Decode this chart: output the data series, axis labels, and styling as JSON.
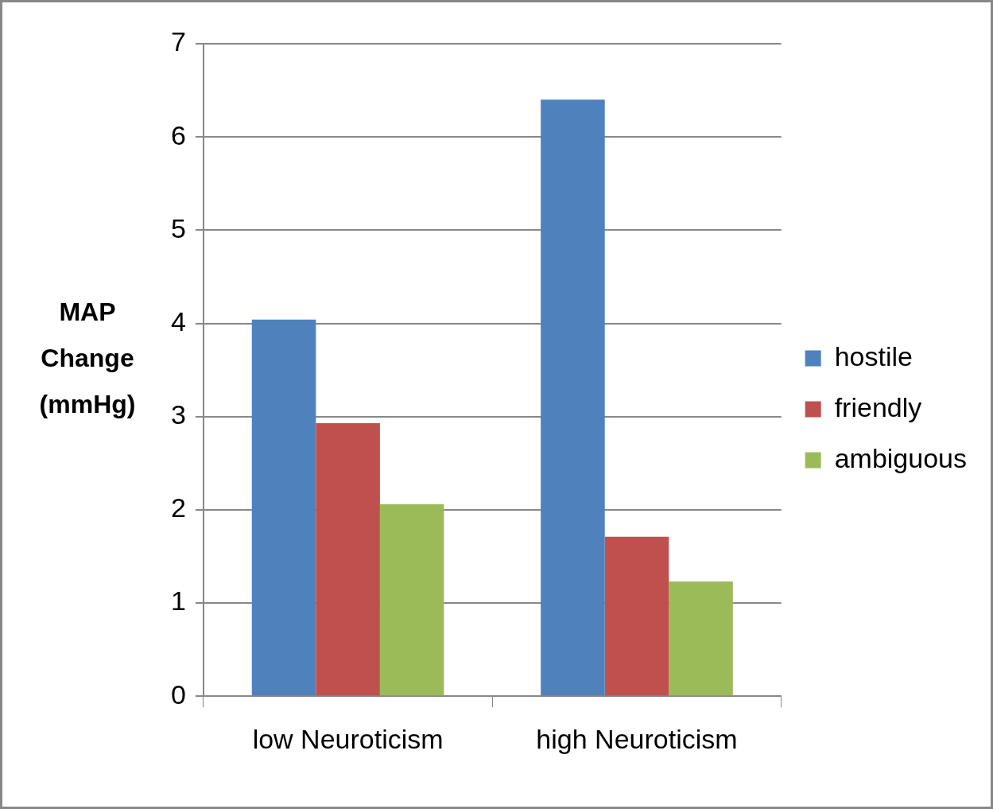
{
  "chart_data": {
    "type": "bar",
    "ylabel": "MAP Change (mmHg)",
    "categories": [
      "low Neuroticism",
      "high Neuroticism"
    ],
    "series": [
      {
        "name": "hostile",
        "color": "#4f81bd",
        "values": [
          4.04,
          6.4
        ]
      },
      {
        "name": "friendly",
        "color": "#c0504d",
        "values": [
          2.93,
          1.71
        ]
      },
      {
        "name": "ambiguous",
        "color": "#9bbb59",
        "values": [
          2.06,
          1.23
        ]
      }
    ],
    "ylim": [
      0,
      7
    ],
    "yticks": [
      0,
      1,
      2,
      3,
      4,
      5,
      6,
      7
    ],
    "grid": "y",
    "legend": "right"
  }
}
